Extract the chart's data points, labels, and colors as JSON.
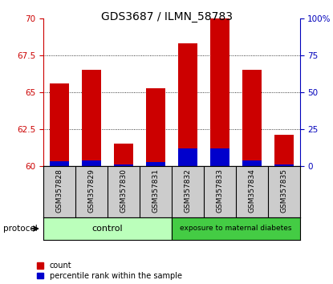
{
  "title": "GDS3687 / ILMN_58783",
  "categories": [
    "GSM357828",
    "GSM357829",
    "GSM357830",
    "GSM357831",
    "GSM357832",
    "GSM357833",
    "GSM357834",
    "GSM357835"
  ],
  "red_top": [
    65.6,
    66.5,
    61.5,
    65.3,
    68.3,
    70.0,
    66.5,
    62.1
  ],
  "blue_top": [
    60.35,
    60.4,
    60.12,
    60.3,
    61.2,
    61.2,
    60.4,
    60.12
  ],
  "bar_bottom": 60.0,
  "ylim_left": [
    60,
    70
  ],
  "ylim_right": [
    0,
    100
  ],
  "yticks_left": [
    60,
    62.5,
    65,
    67.5,
    70
  ],
  "yticks_right": [
    0,
    25,
    50,
    75,
    100
  ],
  "ytick_labels_left": [
    "60",
    "62.5",
    "65",
    "67.5",
    "70"
  ],
  "ytick_labels_right": [
    "0",
    "25",
    "50",
    "75",
    "100%"
  ],
  "red_color": "#cc0000",
  "blue_color": "#0000cc",
  "bar_width": 0.6,
  "grid_color": "#000000",
  "control_color": "#bbffbb",
  "diabetes_color": "#44cc44",
  "control_label": "control",
  "diabetes_label": "exposure to maternal diabetes",
  "protocol_label": "protocol",
  "legend_count": "count",
  "legend_percentile": "percentile rank within the sample",
  "left_color": "#cc0000",
  "right_color": "#0000bb",
  "xticklabel_bg": "#cccccc",
  "fig_width": 4.15,
  "fig_height": 3.54,
  "dpi": 100
}
